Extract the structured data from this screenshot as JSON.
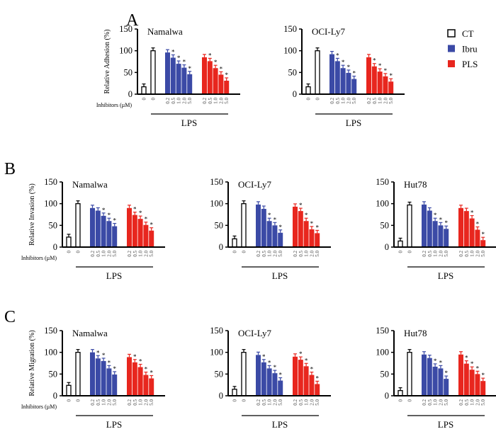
{
  "colors": {
    "CT": "#ffffff",
    "Ibru": "#3b4aa6",
    "PLS": "#e8261e",
    "axis": "#000000"
  },
  "legend": [
    {
      "label": "CT",
      "color": "#ffffff"
    },
    {
      "label": "Ibru",
      "color": "#3b4aa6"
    },
    {
      "label": "PLS",
      "color": "#e8261e"
    }
  ],
  "common": {
    "inhibitors_label": "Inhibitors (µM)",
    "lps_label": "LPS",
    "dose_labels": [
      "0",
      "0",
      "0.2",
      "0.5",
      "1.0",
      "2.0",
      "5.0",
      "0.2",
      "0.5",
      "1.0",
      "2.0",
      "5.0"
    ],
    "y_ticks": [
      "0",
      "50",
      "100",
      "150"
    ]
  },
  "chart_data": [
    {
      "type": "bar",
      "panel": "A",
      "title": "Namalwa",
      "ylabel": "Relative Adhesion (%)",
      "ylim": [
        0,
        150
      ],
      "ct": [
        17,
        100
      ],
      "ibru": [
        96,
        84,
        70,
        61,
        46
      ],
      "pls": [
        85,
        76,
        60,
        45,
        31
      ],
      "ibru_sig": [
        false,
        true,
        true,
        true,
        true
      ],
      "pls_sig": [
        false,
        true,
        true,
        true,
        true
      ]
    },
    {
      "type": "bar",
      "panel": "A",
      "title": "OCI-Ly7",
      "ylabel": "",
      "ylim": [
        0,
        150
      ],
      "ct": [
        17,
        100
      ],
      "ibru": [
        92,
        76,
        60,
        49,
        35
      ],
      "pls": [
        85,
        64,
        52,
        41,
        29
      ],
      "ibru_sig": [
        false,
        true,
        true,
        true,
        true
      ],
      "pls_sig": [
        false,
        true,
        true,
        true,
        true
      ]
    },
    {
      "type": "bar",
      "panel": "B",
      "title": "Namalwa",
      "ylabel": "Relative Invasion (%)",
      "ylim": [
        0,
        150
      ],
      "ct": [
        23,
        100
      ],
      "ibru": [
        90,
        84,
        72,
        60,
        48
      ],
      "pls": [
        90,
        74,
        65,
        51,
        38
      ],
      "ibru_sig": [
        false,
        false,
        true,
        true,
        true
      ],
      "pls_sig": [
        false,
        true,
        true,
        true,
        true
      ]
    },
    {
      "type": "bar",
      "panel": "B",
      "title": "OCI-Ly7",
      "ylabel": "",
      "ylim": [
        0,
        150
      ],
      "ct": [
        19,
        100
      ],
      "ibru": [
        98,
        88,
        60,
        50,
        33
      ],
      "pls": [
        93,
        83,
        60,
        41,
        32
      ],
      "ibru_sig": [
        false,
        false,
        true,
        true,
        true
      ],
      "pls_sig": [
        false,
        true,
        true,
        true,
        true
      ]
    },
    {
      "type": "bar",
      "panel": "B",
      "title": "Hut78",
      "ylabel": "",
      "ylim": [
        0,
        150
      ],
      "ct": [
        14,
        97
      ],
      "ibru": [
        98,
        84,
        60,
        50,
        42
      ],
      "pls": [
        90,
        83,
        66,
        40,
        16
      ],
      "ibru_sig": [
        false,
        false,
        true,
        true,
        true
      ],
      "pls_sig": [
        false,
        false,
        true,
        true,
        true
      ]
    },
    {
      "type": "bar",
      "panel": "C",
      "title": "Namalwa",
      "ylabel": "Relative Migration (%)",
      "ylim": [
        0,
        150
      ],
      "ct": [
        24,
        100
      ],
      "ibru": [
        100,
        86,
        80,
        63,
        49
      ],
      "pls": [
        89,
        77,
        66,
        48,
        40
      ],
      "ibru_sig": [
        false,
        true,
        true,
        true,
        true
      ],
      "pls_sig": [
        false,
        true,
        true,
        true,
        true
      ]
    },
    {
      "type": "bar",
      "panel": "C",
      "title": "OCI-Ly7",
      "ylabel": "",
      "ylim": [
        0,
        150
      ],
      "ct": [
        15,
        100
      ],
      "ibru": [
        94,
        77,
        63,
        52,
        35
      ],
      "pls": [
        90,
        83,
        68,
        48,
        27
      ],
      "ibru_sig": [
        false,
        true,
        true,
        true,
        true
      ],
      "pls_sig": [
        false,
        true,
        true,
        true,
        true
      ]
    },
    {
      "type": "bar",
      "panel": "C",
      "title": "Hut78",
      "ylabel": "",
      "ylim": [
        0,
        150
      ],
      "ct": [
        12,
        100
      ],
      "ibru": [
        95,
        87,
        67,
        63,
        39
      ],
      "pls": [
        95,
        74,
        60,
        50,
        34
      ],
      "ibru_sig": [
        false,
        false,
        true,
        true,
        true
      ],
      "pls_sig": [
        false,
        true,
        true,
        true,
        true
      ]
    }
  ]
}
